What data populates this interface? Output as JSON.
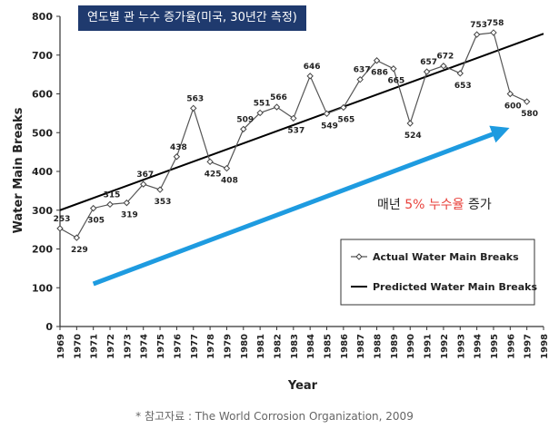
{
  "header": {
    "title": "연도별 관 누수 증가율(미국, 30년간 측정)"
  },
  "source": "* 참고자료 : The World Corrosion Organization, 2009",
  "annotation": {
    "prefix": "매년 ",
    "highlight": "5% 누수율",
    "suffix": " 증가"
  },
  "chart_data": {
    "type": "line",
    "title": "연도별 관 누수 증가율(미국, 30년간 측정)",
    "xlabel": "Year",
    "ylabel": "Water Main Breaks",
    "xlim": [
      1969,
      1998
    ],
    "ylim": [
      0,
      800
    ],
    "yticks": [
      0,
      100,
      200,
      300,
      400,
      500,
      600,
      700,
      800
    ],
    "grid": false,
    "legend_position": "lower-right",
    "series": [
      {
        "name": "Actual Water Main Breaks",
        "style": "line-with-diamond-markers",
        "color": "#555555",
        "x": [
          1969,
          1970,
          1971,
          1972,
          1973,
          1974,
          1975,
          1976,
          1977,
          1978,
          1979,
          1980,
          1981,
          1982,
          1983,
          1984,
          1985,
          1986,
          1987,
          1988,
          1989,
          1990,
          1991,
          1992,
          1993,
          1994,
          1995,
          1996,
          1997
        ],
        "values": [
          253,
          229,
          305,
          315,
          319,
          367,
          353,
          438,
          563,
          425,
          408,
          509,
          551,
          566,
          537,
          646,
          549,
          565,
          637,
          686,
          665,
          524,
          657,
          672,
          653,
          753,
          758,
          600,
          580
        ]
      },
      {
        "name": "Predicted Water Main Breaks",
        "style": "straight-line",
        "color": "#000000",
        "x": [
          1969,
          1998
        ],
        "values": [
          300,
          755
        ]
      }
    ],
    "arrow": {
      "from": [
        1971,
        110
      ],
      "to": [
        1995.5,
        505
      ],
      "color": "#1e9be0"
    },
    "annotation_color": "#e8413b"
  }
}
